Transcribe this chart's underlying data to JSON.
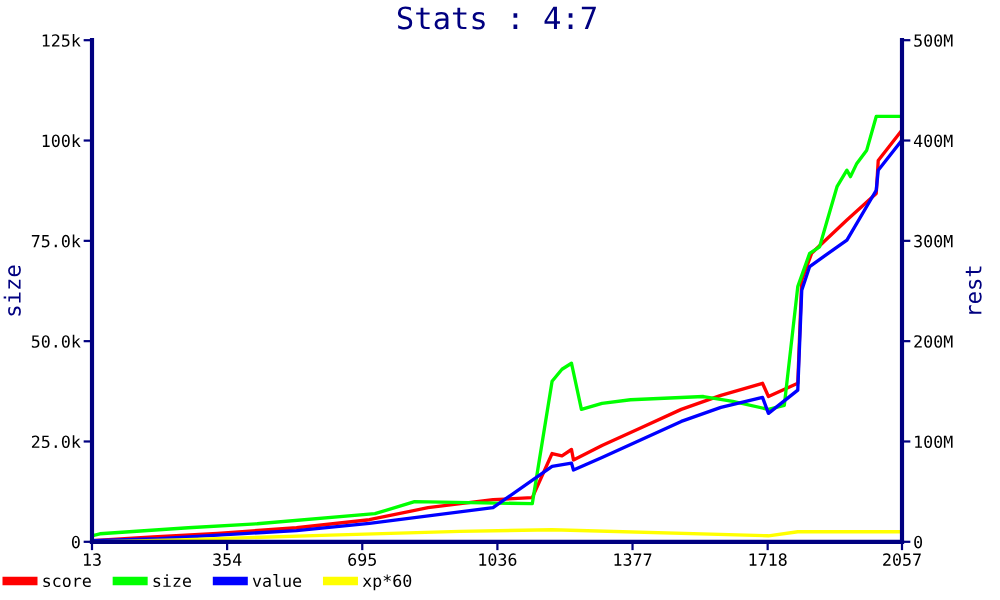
{
  "chart_data": {
    "type": "line",
    "title": "Stats : 4:7",
    "ylabel": "size",
    "y2label": "rest",
    "xlim": [
      13,
      2057
    ],
    "xticks": [
      13,
      354,
      695,
      1036,
      1377,
      1718,
      2057
    ],
    "ylim": [
      0,
      125000
    ],
    "yticks": [
      0,
      {
        "value": 25000,
        "label": "25.0k"
      },
      {
        "value": 50000,
        "label": "50.0k"
      },
      {
        "value": 75000,
        "label": "75.0k"
      },
      {
        "value": 100000,
        "label": "100k"
      },
      {
        "value": 125000,
        "label": "125k"
      }
    ],
    "y2lim": [
      0,
      500000000
    ],
    "y2ticks": [
      0,
      {
        "value": 100000000,
        "label": "100M"
      },
      {
        "value": 200000000,
        "label": "200M"
      },
      {
        "value": 300000000,
        "label": "300M"
      },
      {
        "value": 400000000,
        "label": "400M"
      },
      {
        "value": 500000000,
        "label": "500M"
      }
    ],
    "grid": false,
    "legend": "bottom",
    "series": [
      {
        "name": "score",
        "color": "#ff0000",
        "x": [
          13,
          167,
          330,
          529,
          713,
          861,
          1025,
          1124,
          1174,
          1199,
          1223,
          1228,
          1300,
          1400,
          1500,
          1600,
          1705,
          1720,
          1794,
          1804,
          1829,
          1918,
          1992,
          1997,
          2057
        ],
        "values": [
          300,
          1200,
          2100,
          3500,
          5500,
          8500,
          10500,
          11000,
          22000,
          21400,
          23000,
          20400,
          24000,
          28500,
          33000,
          36500,
          39500,
          36200,
          39500,
          65200,
          71900,
          80200,
          86800,
          95000,
          102600
        ]
      },
      {
        "name": "size",
        "color": "#00ff00",
        "x": [
          13,
          33,
          256,
          430,
          727,
          827,
          1124,
          1174,
          1199,
          1223,
          1248,
          1300,
          1372,
          1556,
          1630,
          1720,
          1760,
          1794,
          1824,
          1849,
          1868,
          1893,
          1918,
          1927,
          1943,
          1968,
          1992,
          2057
        ],
        "values": [
          1500,
          2000,
          3500,
          4500,
          7000,
          10000,
          9500,
          40000,
          43000,
          44500,
          33000,
          34500,
          35400,
          36200,
          35000,
          33000,
          34000,
          63600,
          71900,
          73500,
          80000,
          88500,
          92600,
          91000,
          94300,
          97600,
          106000,
          106000
        ]
      },
      {
        "name": "value",
        "color": "#0000ff",
        "x": [
          13,
          182,
          529,
          713,
          1025,
          1174,
          1223,
          1228,
          1300,
          1400,
          1500,
          1600,
          1705,
          1720,
          1794,
          1804,
          1824,
          1918,
          1992,
          1997,
          2057
        ],
        "values": [
          300,
          800,
          2800,
          4600,
          8500,
          18800,
          19600,
          17900,
          21000,
          25500,
          30000,
          33500,
          36000,
          32000,
          37800,
          62700,
          68600,
          75200,
          87600,
          92600,
          100100
        ]
      },
      {
        "name": "xp*60",
        "color": "#ffff00",
        "x": [
          13,
          231,
          593,
          941,
          1174,
          1720,
          1794,
          2057
        ],
        "values": [
          0,
          500,
          1600,
          2600,
          3000,
          1500,
          2500,
          2500
        ]
      }
    ]
  }
}
